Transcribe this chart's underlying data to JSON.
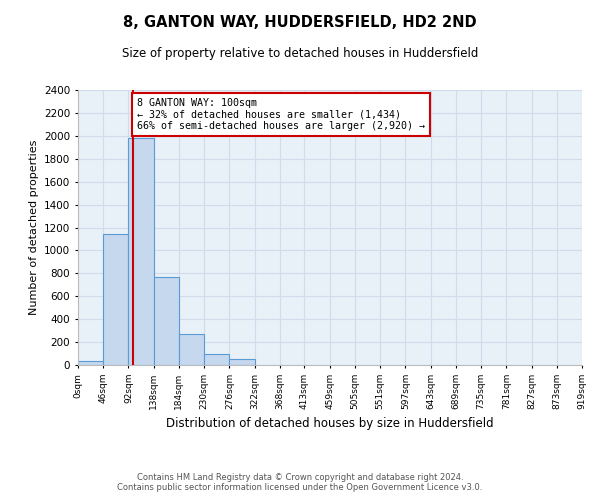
{
  "title1": "8, GANTON WAY, HUDDERSFIELD, HD2 2ND",
  "title2": "Size of property relative to detached houses in Huddersfield",
  "xlabel": "Distribution of detached houses by size in Huddersfield",
  "ylabel": "Number of detached properties",
  "annotation_title": "8 GANTON WAY: 100sqm",
  "annotation_line1": "← 32% of detached houses are smaller (1,434)",
  "annotation_line2": "66% of semi-detached houses are larger (2,920) →",
  "footer1": "Contains HM Land Registry data © Crown copyright and database right 2024.",
  "footer2": "Contains public sector information licensed under the Open Government Licence v3.0.",
  "bar_left_edges": [
    0,
    46,
    92,
    138,
    184,
    230,
    276,
    322,
    368,
    413,
    459,
    505,
    551,
    597,
    643,
    689,
    735,
    781,
    827,
    873
  ],
  "bar_heights": [
    35,
    1140,
    1980,
    770,
    270,
    100,
    50,
    0,
    0,
    0,
    0,
    0,
    0,
    0,
    0,
    0,
    0,
    0,
    0,
    0
  ],
  "bin_width": 46,
  "bar_color": "#c5d8ee",
  "bar_edge_color": "#5b9bd5",
  "grid_color": "#d0dcea",
  "bg_color": "#e8f0f8",
  "vline_x": 100,
  "vline_color": "#cc0000",
  "annotation_box_color": "#cc0000",
  "ylim": [
    0,
    2400
  ],
  "xlim": [
    0,
    919
  ],
  "xtick_labels": [
    "0sqm",
    "46sqm",
    "92sqm",
    "138sqm",
    "184sqm",
    "230sqm",
    "276sqm",
    "322sqm",
    "368sqm",
    "413sqm",
    "459sqm",
    "505sqm",
    "551sqm",
    "597sqm",
    "643sqm",
    "689sqm",
    "735sqm",
    "781sqm",
    "827sqm",
    "873sqm",
    "919sqm"
  ],
  "xtick_positions": [
    0,
    46,
    92,
    138,
    184,
    230,
    276,
    322,
    368,
    413,
    459,
    505,
    551,
    597,
    643,
    689,
    735,
    781,
    827,
    873,
    919
  ]
}
